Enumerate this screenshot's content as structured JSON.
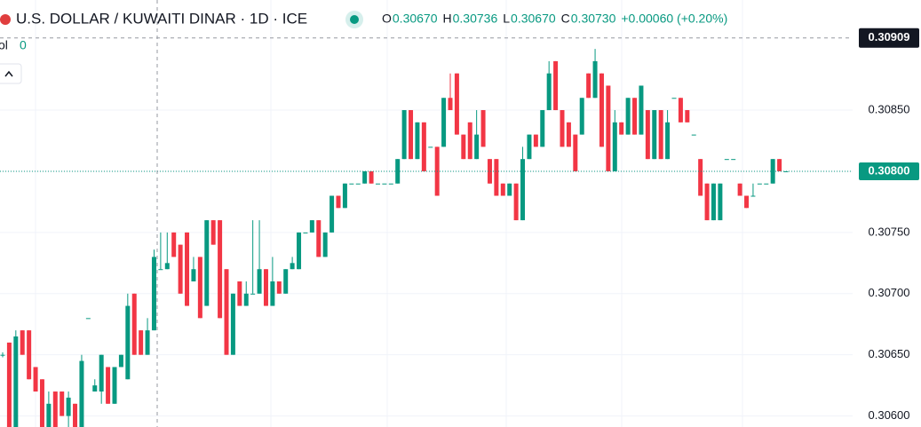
{
  "header": {
    "title": "U.S. DOLLAR / KUWAITI DINAR · 1D · ICE",
    "ohlc": [
      {
        "key": "O",
        "value": "0.30670"
      },
      {
        "key": "H",
        "value": "0.30736"
      },
      {
        "key": "L",
        "value": "0.30670"
      },
      {
        "key": "C",
        "value": "0.30730"
      }
    ],
    "change": "+0.00060 (+0.20%)",
    "volume_label": "ol",
    "volume_value": "0"
  },
  "chart_data": {
    "type": "candlestick",
    "up_color": "#089981",
    "down_color": "#f23645",
    "ylim": [
      0.30591,
      0.3094
    ],
    "yticks": [
      {
        "value": 0.306,
        "label": "0.30600"
      },
      {
        "value": 0.3065,
        "label": "0.30650"
      },
      {
        "value": 0.307,
        "label": "0.30700"
      },
      {
        "value": 0.3075,
        "label": "0.30750"
      },
      {
        "value": 0.308,
        "label": "0.30800"
      },
      {
        "value": 0.3085,
        "label": "0.30850"
      }
    ],
    "grid": true,
    "last_price": {
      "value": 0.308,
      "label": "0.30800"
    },
    "crosshair_price": 0.30909,
    "open": [
      0.3065,
      0.3066,
      0.3059,
      0.3067,
      0.3067,
      0.3064,
      0.3063,
      0.3059,
      0.3062,
      0.3062,
      0.306,
      0.3061,
      0.3059,
      0.3068,
      0.3062,
      0.3062,
      0.3064,
      0.3061,
      0.3064,
      0.3063,
      0.307,
      0.3067,
      0.3065,
      0.3067,
      0.3072,
      0.3072,
      0.3075,
      0.3074,
      0.3075,
      0.3071,
      0.3073,
      0.3069,
      0.3076,
      0.3076,
      0.3072,
      0.3065,
      0.3071,
      0.3069,
      0.307,
      0.307,
      0.3072,
      0.3069,
      0.3071,
      0.307,
      0.3072,
      0.3072,
      0.3075,
      0.3075,
      0.3076,
      0.3073,
      0.3075,
      0.3078,
      0.3077,
      0.3079,
      0.3079,
      0.3079,
      0.308,
      0.3079,
      0.3079,
      0.3079,
      0.3079,
      0.3081,
      0.3085,
      0.3081,
      0.3084,
      0.3082,
      0.3082,
      0.3082,
      0.3086,
      0.3088,
      0.3083,
      0.3084,
      0.3081,
      0.3085,
      0.3081,
      0.3081,
      0.3079,
      0.3078,
      0.3079,
      0.3076,
      0.3081,
      0.3083,
      0.3082,
      0.3085,
      0.3089,
      0.3085,
      0.3084,
      0.3083,
      0.3083,
      0.3088,
      0.3086,
      0.3088,
      0.3087,
      0.308,
      0.3084,
      0.3083,
      0.3086,
      0.3083,
      0.3085,
      0.3081,
      0.3085,
      0.3081,
      0.3086,
      0.3086,
      0.3085,
      0.3083,
      0.3081,
      0.3079,
      0.3076,
      0.3076,
      0.3081,
      0.3081,
      0.3079,
      0.3078,
      0.3078,
      0.3079,
      0.3079,
      0.3079,
      0.3081,
      0.308
    ],
    "high": [
      0.30652,
      0.3066,
      0.3067,
      0.3067,
      0.3067,
      0.3064,
      0.3063,
      0.3062,
      0.3062,
      0.3062,
      0.3062,
      0.3061,
      0.3065,
      0.3068,
      0.3063,
      0.3065,
      0.3064,
      0.3064,
      0.3065,
      0.307,
      0.307,
      0.3067,
      0.3068,
      0.30736,
      0.3075,
      0.3075,
      0.3075,
      0.3074,
      0.3075,
      0.3073,
      0.3073,
      0.3076,
      0.3076,
      0.3076,
      0.3072,
      0.307,
      0.3071,
      0.3071,
      0.3076,
      0.3076,
      0.3072,
      0.3073,
      0.3071,
      0.3072,
      0.3073,
      0.3075,
      0.3075,
      0.3076,
      0.3076,
      0.3075,
      0.3078,
      0.3078,
      0.3079,
      0.3079,
      0.3079,
      0.308,
      0.308,
      0.3079,
      0.3079,
      0.3079,
      0.3081,
      0.3085,
      0.3085,
      0.3084,
      0.3084,
      0.3082,
      0.3082,
      0.3086,
      0.3088,
      0.3088,
      0.3083,
      0.3084,
      0.3085,
      0.3085,
      0.3081,
      0.3081,
      0.3079,
      0.3079,
      0.3079,
      0.3082,
      0.3083,
      0.3083,
      0.3085,
      0.3089,
      0.3089,
      0.3085,
      0.3084,
      0.3083,
      0.3086,
      0.3088,
      0.309,
      0.3088,
      0.3087,
      0.3085,
      0.3084,
      0.3086,
      0.3086,
      0.3087,
      0.3085,
      0.3085,
      0.3085,
      0.3085,
      0.3086,
      0.3086,
      0.3085,
      0.3083,
      0.3081,
      0.3079,
      0.3079,
      0.3079,
      0.3081,
      0.3081,
      0.3079,
      0.3078,
      0.3079,
      0.3079,
      0.3079,
      0.3081,
      0.3081,
      0.308
    ],
    "low": [
      0.30648,
      0.3059,
      0.3059,
      0.3065,
      0.3063,
      0.3062,
      0.3059,
      0.3059,
      0.3059,
      0.306,
      0.3059,
      0.3059,
      0.3059,
      0.3068,
      0.3062,
      0.3061,
      0.3061,
      0.3061,
      0.3064,
      0.3063,
      0.3065,
      0.3065,
      0.3065,
      0.3067,
      0.3072,
      0.3072,
      0.3073,
      0.307,
      0.3069,
      0.3071,
      0.3068,
      0.3069,
      0.3074,
      0.3068,
      0.3065,
      0.3065,
      0.3069,
      0.3069,
      0.307,
      0.307,
      0.3069,
      0.3069,
      0.307,
      0.307,
      0.3072,
      0.3072,
      0.3075,
      0.3075,
      0.3073,
      0.3073,
      0.3075,
      0.3077,
      0.3077,
      0.3079,
      0.3079,
      0.3079,
      0.3079,
      0.3079,
      0.3079,
      0.3079,
      0.3079,
      0.3081,
      0.3081,
      0.3081,
      0.308,
      0.3082,
      0.3078,
      0.3082,
      0.3085,
      0.3083,
      0.3081,
      0.3081,
      0.3081,
      0.3082,
      0.3079,
      0.3078,
      0.3078,
      0.3078,
      0.3076,
      0.3076,
      0.3081,
      0.3082,
      0.3082,
      0.3085,
      0.3085,
      0.3082,
      0.3082,
      0.308,
      0.3083,
      0.3086,
      0.3086,
      0.3082,
      0.308,
      0.308,
      0.3083,
      0.3083,
      0.3083,
      0.3083,
      0.3081,
      0.3081,
      0.3081,
      0.3081,
      0.3086,
      0.3084,
      0.3084,
      0.3083,
      0.3078,
      0.3076,
      0.3076,
      0.3076,
      0.3081,
      0.3081,
      0.3078,
      0.3077,
      0.3078,
      0.3079,
      0.3079,
      0.3079,
      0.308,
      0.308
    ],
    "close": [
      0.3065,
      0.3059,
      0.30665,
      0.3065,
      0.3063,
      0.3062,
      0.3059,
      0.3061,
      0.3059,
      0.306,
      0.30615,
      0.3059,
      0.30645,
      0.3068,
      0.30625,
      0.3065,
      0.3061,
      0.3064,
      0.3065,
      0.3069,
      0.3065,
      0.3065,
      0.3067,
      0.3073,
      0.3072,
      0.30725,
      0.3073,
      0.307,
      0.3069,
      0.3072,
      0.3068,
      0.3076,
      0.3074,
      0.3068,
      0.3065,
      0.307,
      0.3069,
      0.307,
      0.307,
      0.3072,
      0.3069,
      0.3071,
      0.307,
      0.3072,
      0.30725,
      0.3075,
      0.3075,
      0.3076,
      0.3073,
      0.3075,
      0.3078,
      0.3077,
      0.3079,
      0.3079,
      0.3079,
      0.308,
      0.3079,
      0.3079,
      0.3079,
      0.3079,
      0.3081,
      0.3085,
      0.3081,
      0.3084,
      0.308,
      0.3082,
      0.3078,
      0.3086,
      0.3085,
      0.3083,
      0.3081,
      0.3081,
      0.3083,
      0.3082,
      0.3079,
      0.3078,
      0.3078,
      0.3079,
      0.3076,
      0.3081,
      0.3083,
      0.3082,
      0.3085,
      0.3088,
      0.3085,
      0.3082,
      0.3082,
      0.308,
      0.3086,
      0.3086,
      0.3089,
      0.3082,
      0.308,
      0.3084,
      0.3083,
      0.3086,
      0.3083,
      0.3087,
      0.3081,
      0.3085,
      0.3081,
      0.3084,
      0.3086,
      0.3084,
      0.3084,
      0.3083,
      0.3078,
      0.3076,
      0.3079,
      0.3079,
      0.3081,
      0.3081,
      0.3078,
      0.3077,
      0.3078,
      0.3079,
      0.3079,
      0.3081,
      0.308,
      0.308
    ]
  }
}
